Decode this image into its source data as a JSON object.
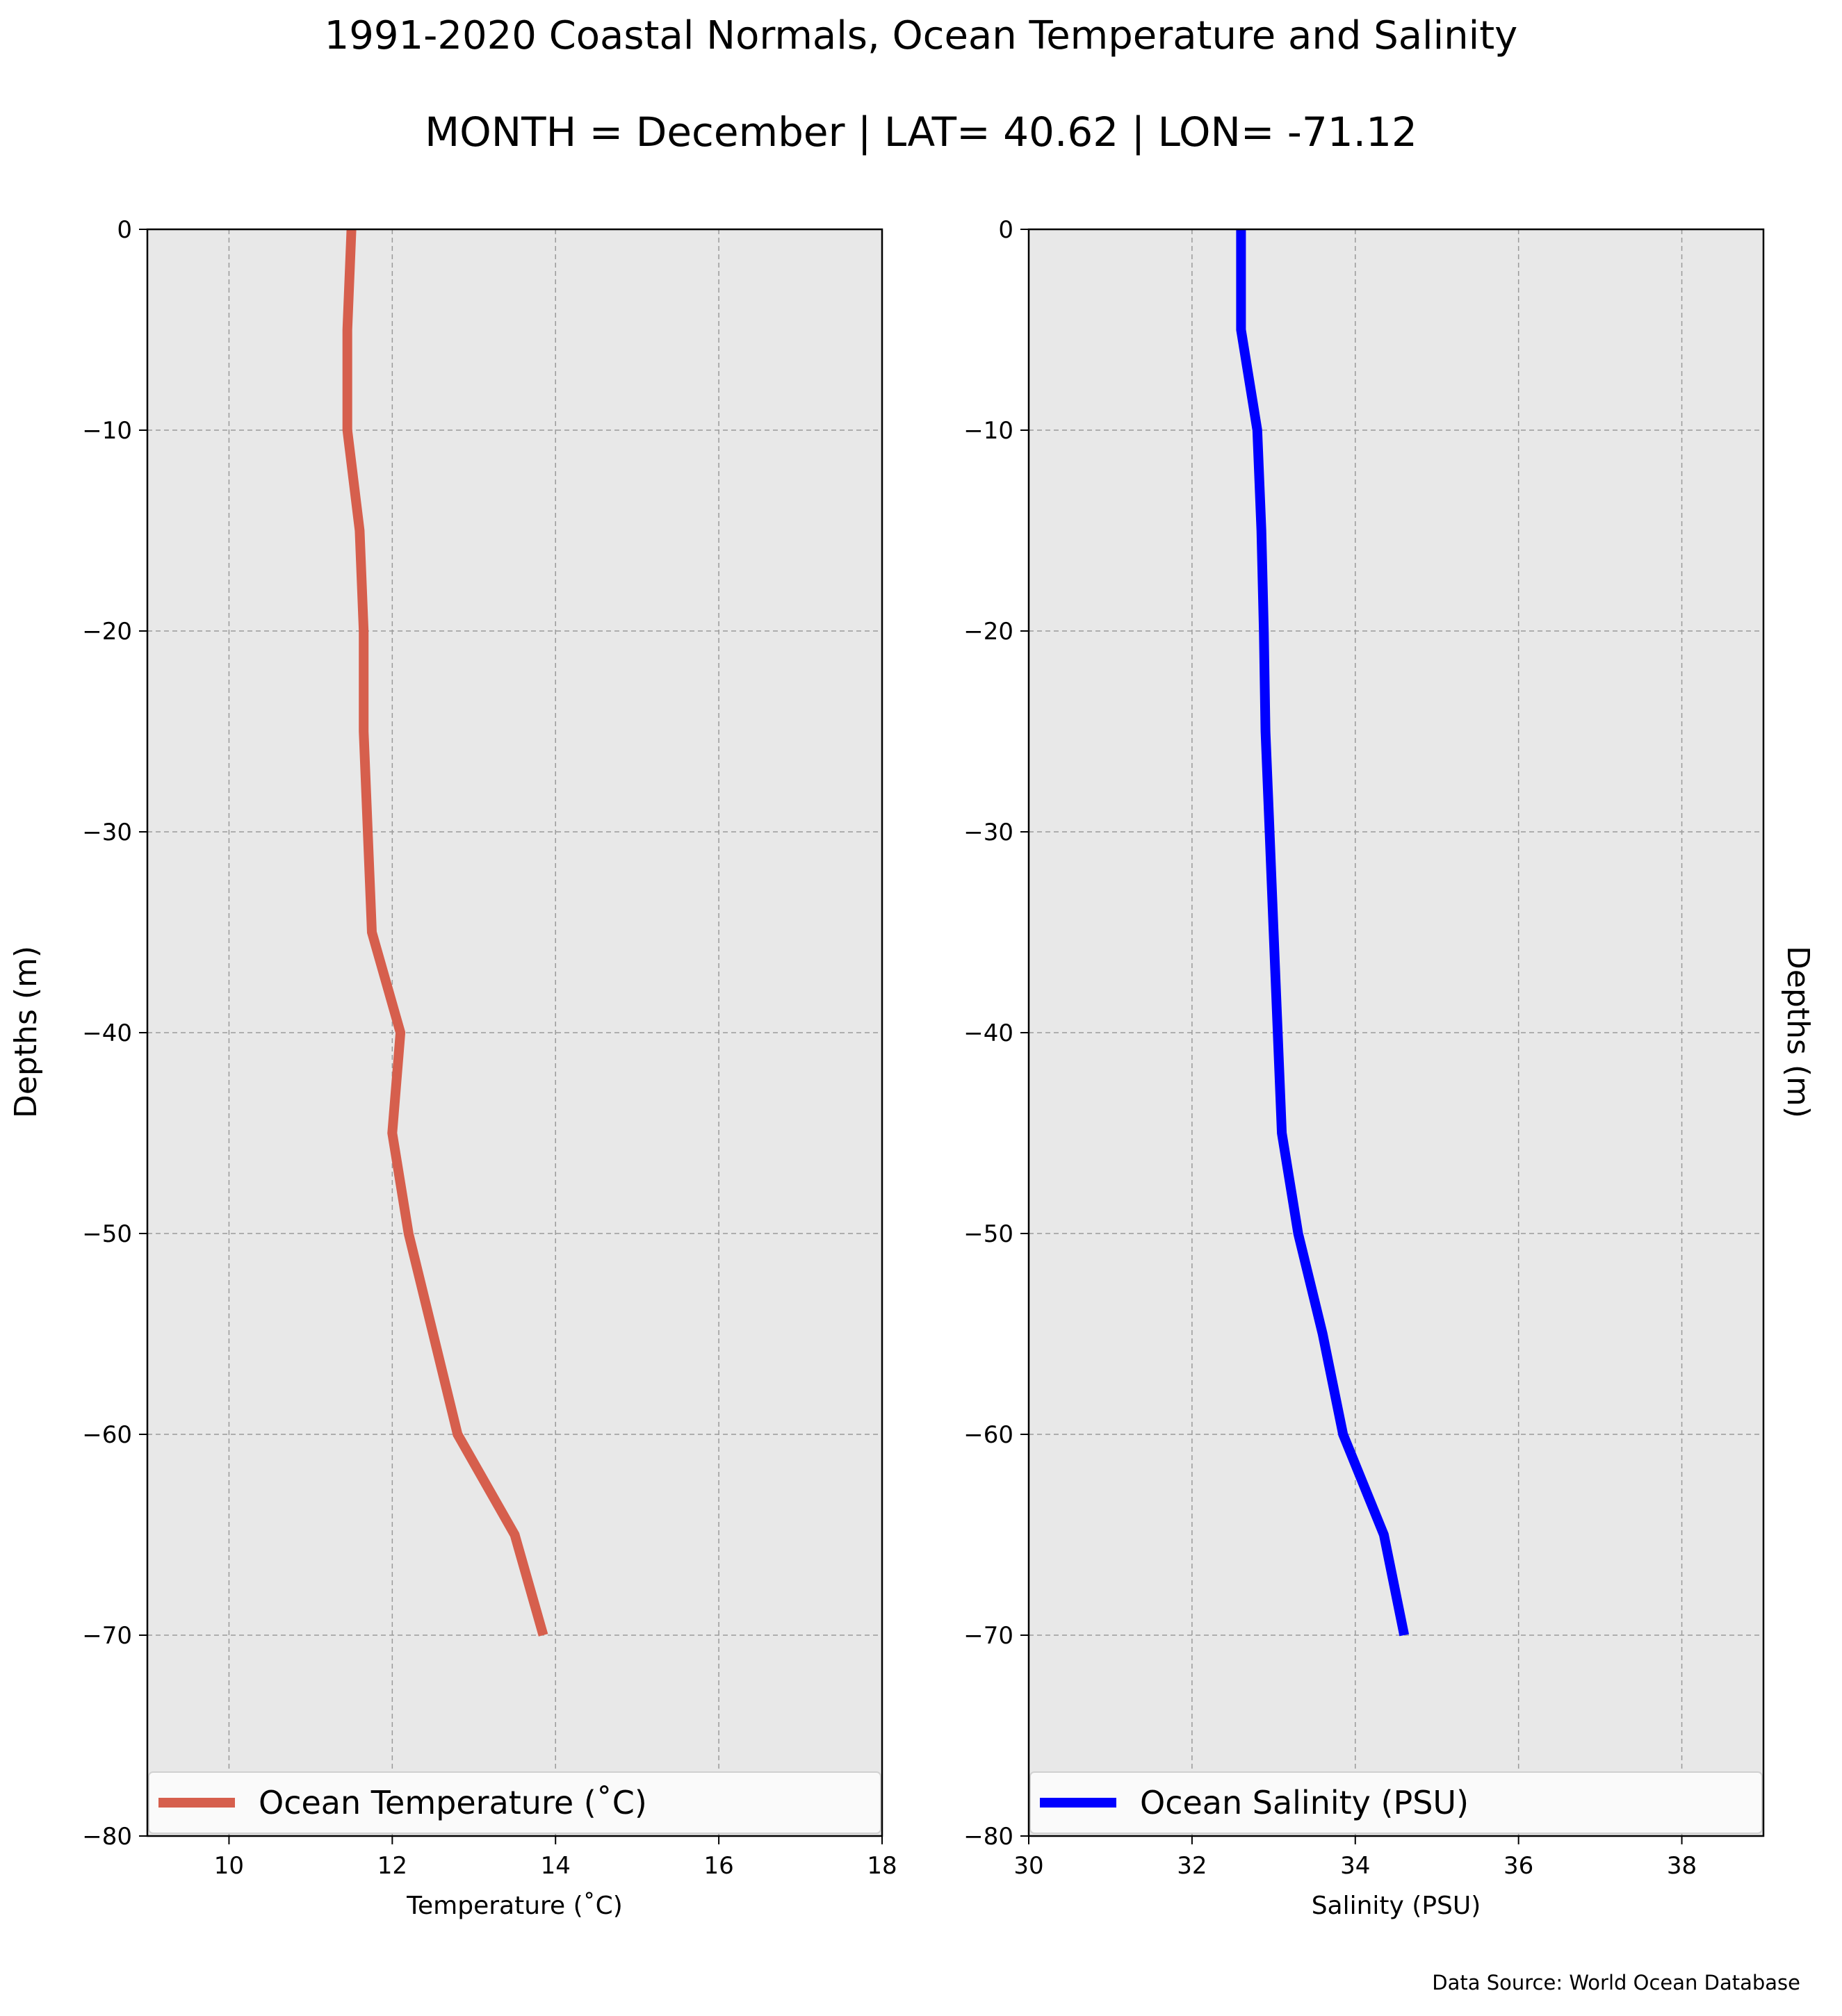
{
  "figure": {
    "title": "1991-2020 Coastal Normals, Ocean Temperature and Salinity",
    "subtitle": "MONTH = December | LAT= 40.62 | LON= -71.12",
    "source_note": "Data Source: World Ocean Database"
  },
  "colors": {
    "panel_background": "#e8e8e8",
    "grid": "#9a9a9a",
    "temperature_line": "#d65f4d",
    "salinity_line": "#0000ff"
  },
  "chart_data": [
    {
      "type": "line",
      "orientation": "vertical-profile",
      "xlabel": "Temperature (˚C)",
      "ylabel": "Depths (m)",
      "xlim": [
        9,
        18
      ],
      "ylim": [
        -80,
        0
      ],
      "xticks": [
        10,
        12,
        14,
        16,
        18
      ],
      "yticks": [
        0,
        -10,
        -20,
        -30,
        -40,
        -50,
        -60,
        -70,
        -80
      ],
      "grid": true,
      "legend_position": "bottom",
      "series": [
        {
          "name": "Ocean Temperature (˚C)",
          "x": [
            11.5,
            11.45,
            11.45,
            11.6,
            11.65,
            11.65,
            11.7,
            11.75,
            12.1,
            12.0,
            12.2,
            12.5,
            12.8,
            13.5,
            13.85
          ],
          "y": [
            0,
            -5,
            -10,
            -15,
            -20,
            -25,
            -30,
            -35,
            -40,
            -45,
            -50,
            -55,
            -60,
            -65,
            -70
          ]
        }
      ]
    },
    {
      "type": "line",
      "orientation": "vertical-profile",
      "xlabel": "Salinity (PSU)",
      "ylabel": "Depths (m)",
      "xlim": [
        30,
        39
      ],
      "ylim": [
        -80,
        0
      ],
      "xticks": [
        30,
        32,
        34,
        36,
        38
      ],
      "yticks": [
        0,
        -10,
        -20,
        -30,
        -40,
        -50,
        -60,
        -70,
        -80
      ],
      "grid": true,
      "legend_position": "bottom",
      "series": [
        {
          "name": "Ocean Salinity (PSU)",
          "x": [
            32.6,
            32.6,
            32.8,
            32.85,
            32.88,
            32.9,
            32.95,
            33.0,
            33.05,
            33.1,
            33.3,
            33.6,
            33.85,
            34.35,
            34.6
          ],
          "y": [
            0,
            -5,
            -10,
            -15,
            -20,
            -25,
            -30,
            -35,
            -40,
            -45,
            -50,
            -55,
            -60,
            -65,
            -70
          ]
        }
      ]
    }
  ]
}
